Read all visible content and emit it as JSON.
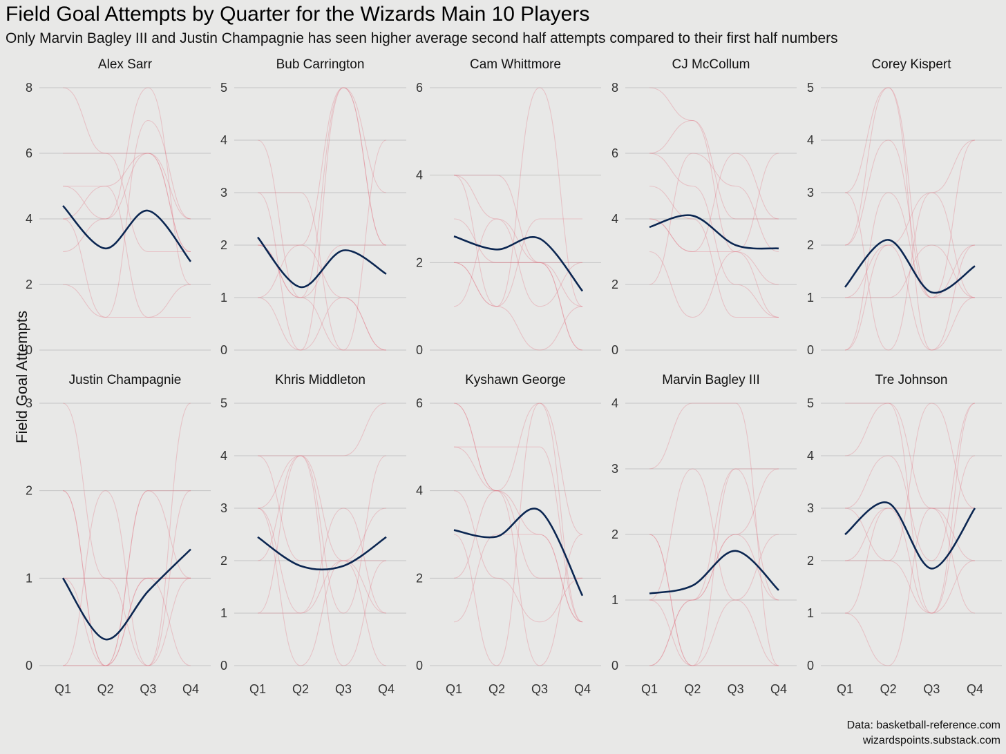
{
  "title": "Field Goal Attempts by Quarter for the Wizards Main 10 Players",
  "subtitle": "Only Marvin Bagley III and Justin Champagnie has seen higher average second half attempts compared to their first half numbers",
  "caption": {
    "line1": "Data: basketball-reference.com",
    "line2": "wizardspoints.substack.com"
  },
  "colors": {
    "background": "#e8e8e7",
    "game_line": "#e26b7a",
    "average_line": "#0b2651",
    "grid": "#c4c4c4"
  },
  "chart_data": {
    "type": "line",
    "facet": "small-multiples",
    "ylabel": "Field Goal Attempts",
    "xlabel": "",
    "categories": [
      "Q1",
      "Q2",
      "Q3",
      "Q4"
    ],
    "panels": [
      {
        "player": "Alex Sarr",
        "ylim": [
          0,
          8
        ],
        "yticks": [
          0,
          2,
          4,
          6,
          8
        ],
        "average": [
          4.4,
          3.1,
          4.25,
          2.7
        ],
        "games": [
          [
            8,
            6,
            6,
            4
          ],
          [
            6,
            6,
            3,
            3
          ],
          [
            5,
            5,
            6,
            3
          ],
          [
            4,
            1,
            7,
            4
          ],
          [
            3,
            4,
            8,
            2
          ],
          [
            2,
            1,
            1,
            1
          ],
          [
            5,
            4,
            6,
            3
          ],
          [
            4,
            5,
            1,
            2
          ]
        ]
      },
      {
        "player": "Bub Carrington",
        "ylim": [
          0,
          5
        ],
        "yticks": [
          0,
          1,
          2,
          3,
          4,
          5
        ],
        "average": [
          2.15,
          1.2,
          1.9,
          1.45
        ],
        "games": [
          [
            4,
            1,
            5,
            3
          ],
          [
            3,
            0,
            5,
            2
          ],
          [
            2,
            1,
            2,
            2
          ],
          [
            1,
            0,
            1,
            0
          ],
          [
            3,
            3,
            0,
            0
          ],
          [
            2,
            1,
            0,
            4
          ],
          [
            2,
            2,
            5,
            2
          ],
          [
            1,
            2,
            1,
            0
          ]
        ]
      },
      {
        "player": "Cam Whittmore",
        "ylim": [
          0,
          6
        ],
        "yticks": [
          0,
          2,
          4,
          6
        ],
        "average": [
          2.6,
          2.3,
          2.55,
          1.35
        ],
        "games": [
          [
            4,
            4,
            2,
            2
          ],
          [
            4,
            1,
            6,
            1
          ],
          [
            3,
            2,
            2,
            0
          ],
          [
            2,
            1,
            3,
            3
          ],
          [
            1,
            3,
            2,
            1
          ],
          [
            2,
            2,
            2,
            0
          ],
          [
            4,
            3,
            1,
            2
          ],
          [
            2,
            1,
            0,
            1
          ]
        ]
      },
      {
        "player": "CJ McCollum",
        "ylim": [
          0,
          8
        ],
        "yticks": [
          0,
          2,
          4,
          6,
          8
        ],
        "average": [
          3.75,
          4.1,
          3.2,
          3.1
        ],
        "games": [
          [
            8,
            7,
            4,
            4
          ],
          [
            6,
            7,
            3,
            1
          ],
          [
            5,
            4,
            1,
            1
          ],
          [
            4,
            3,
            3,
            6
          ],
          [
            2,
            6,
            5,
            3
          ],
          [
            3,
            1,
            3,
            2
          ],
          [
            4,
            3,
            6,
            4
          ],
          [
            6,
            5,
            2,
            1
          ]
        ]
      },
      {
        "player": "Corey Kispert",
        "ylim": [
          0,
          5
        ],
        "yticks": [
          0,
          1,
          2,
          3,
          4,
          5
        ],
        "average": [
          1.2,
          2.1,
          1.1,
          1.6
        ],
        "games": [
          [
            3,
            5,
            0,
            2
          ],
          [
            2,
            4,
            1,
            1
          ],
          [
            1,
            2,
            3,
            4
          ],
          [
            0,
            3,
            1,
            2
          ],
          [
            1,
            1,
            2,
            1
          ],
          [
            3,
            0,
            3,
            1
          ],
          [
            2,
            5,
            1,
            4
          ],
          [
            0,
            2,
            0,
            1
          ]
        ]
      },
      {
        "player": "Justin Champagnie",
        "ylim": [
          0,
          3
        ],
        "yticks": [
          0,
          1,
          2,
          3
        ],
        "average": [
          1.0,
          0.3,
          0.85,
          1.33
        ],
        "games": [
          [
            3,
            1,
            0,
            1
          ],
          [
            2,
            0,
            2,
            2
          ],
          [
            1,
            1,
            1,
            1
          ],
          [
            0,
            2,
            0,
            2
          ],
          [
            1,
            0,
            1,
            0
          ],
          [
            0,
            0,
            2,
            1
          ],
          [
            2,
            0,
            0,
            3
          ],
          [
            0,
            0,
            1,
            1
          ]
        ]
      },
      {
        "player": "Khris Middleton",
        "ylim": [
          0,
          5
        ],
        "yticks": [
          0,
          1,
          2,
          3,
          4,
          5
        ],
        "average": [
          2.45,
          1.9,
          1.9,
          2.45
        ],
        "games": [
          [
            3,
            4,
            4,
            5
          ],
          [
            3,
            0,
            2,
            2
          ],
          [
            4,
            4,
            1,
            4
          ],
          [
            1,
            1,
            3,
            1
          ],
          [
            2,
            4,
            0,
            2
          ],
          [
            4,
            2,
            2,
            1
          ],
          [
            3,
            1,
            2,
            3
          ],
          [
            1,
            4,
            2,
            0
          ]
        ]
      },
      {
        "player": "Kyshawn George",
        "ylim": [
          0,
          6
        ],
        "yticks": [
          0,
          2,
          4,
          6
        ],
        "average": [
          3.1,
          2.95,
          3.55,
          1.6
        ],
        "games": [
          [
            6,
            4,
            6,
            3
          ],
          [
            5,
            5,
            5,
            1
          ],
          [
            4,
            2,
            1,
            2
          ],
          [
            3,
            0,
            6,
            1
          ],
          [
            2,
            4,
            3,
            1
          ],
          [
            6,
            4,
            0,
            3
          ],
          [
            5,
            4,
            2,
            2
          ],
          [
            1,
            3,
            3,
            1
          ]
        ]
      },
      {
        "player": "Marvin Bagley III",
        "ylim": [
          0,
          4
        ],
        "yticks": [
          0,
          1,
          2,
          3,
          4
        ],
        "average": [
          1.1,
          1.22,
          1.75,
          1.15
        ],
        "games": [
          [
            3,
            4,
            4,
            0
          ],
          [
            2,
            0,
            3,
            3
          ],
          [
            1,
            3,
            1,
            2
          ],
          [
            0,
            1,
            2,
            1
          ],
          [
            2,
            0,
            0,
            0
          ],
          [
            1,
            1,
            3,
            1
          ],
          [
            0,
            1,
            2,
            3
          ],
          [
            1,
            0,
            1,
            0
          ]
        ]
      },
      {
        "player": "Tre Johnson",
        "ylim": [
          0,
          5
        ],
        "yticks": [
          0,
          1,
          2,
          3,
          4,
          5
        ],
        "average": [
          2.5,
          3.1,
          1.85,
          3.0
        ],
        "games": [
          [
            5,
            5,
            1,
            2
          ],
          [
            3,
            4,
            2,
            5
          ],
          [
            2,
            3,
            1,
            4
          ],
          [
            1,
            0,
            3,
            2
          ],
          [
            4,
            5,
            3,
            1
          ],
          [
            2,
            2,
            5,
            3
          ],
          [
            3,
            2,
            1,
            5
          ],
          [
            1,
            3,
            3,
            3
          ]
        ]
      }
    ]
  }
}
